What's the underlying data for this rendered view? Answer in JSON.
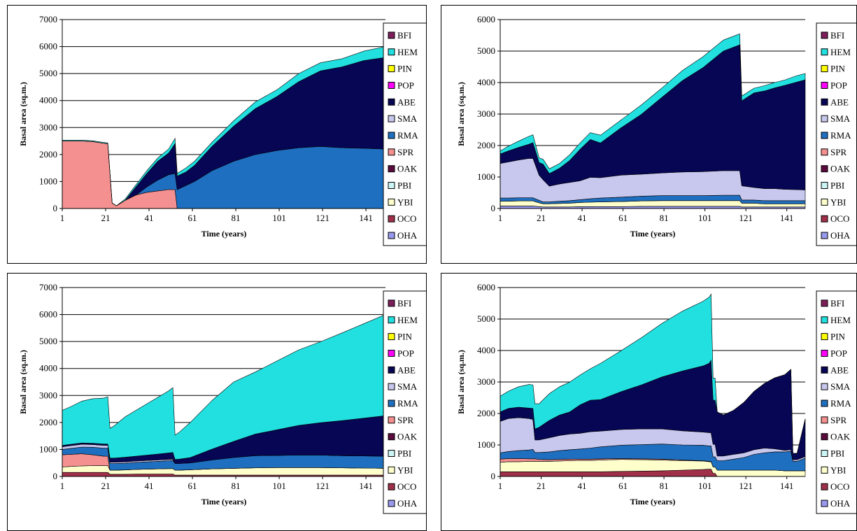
{
  "legend_species": [
    "BFI",
    "HEM",
    "PIN",
    "POP",
    "ABE",
    "SMA",
    "RMA",
    "SPR",
    "OAK",
    "PBI",
    "YBI",
    "OCO",
    "OHA"
  ],
  "colors": {
    "BFI": "#7b1e5a",
    "HEM": "#22e0e0",
    "PIN": "#ffff00",
    "POP": "#ff00ff",
    "ABE": "#060655",
    "SMA": "#c8c8ee",
    "RMA": "#1f6fc0",
    "SPR": "#f59090",
    "OAK": "#5a0a3c",
    "PBI": "#ccf5f5",
    "YBI": "#ffffcc",
    "OCO": "#a0304a",
    "OHA": "#9999ee"
  },
  "chart_data": [
    {
      "type": "area",
      "stacked": true,
      "xlabel": "Time (years)",
      "ylabel": "Basal area (sq.m.)",
      "xticks": [
        1,
        21,
        41,
        61,
        81,
        101,
        121,
        141
      ],
      "xlim": [
        1,
        150
      ],
      "yticks": [
        0,
        1000,
        2000,
        3000,
        4000,
        5000,
        6000,
        7000
      ],
      "ylim": [
        0,
        7000
      ],
      "legend": "right",
      "x": [
        1,
        5,
        10,
        15,
        20,
        22,
        24,
        26,
        30,
        35,
        40,
        45,
        50,
        53,
        54,
        58,
        62,
        70,
        80,
        90,
        100,
        110,
        120,
        130,
        140,
        150
      ],
      "series": [
        {
          "name": "SPR",
          "values": [
            2500,
            2500,
            2500,
            2480,
            2420,
            2400,
            200,
            100,
            300,
            500,
            600,
            650,
            700,
            700,
            0,
            0,
            0,
            0,
            0,
            0,
            0,
            0,
            0,
            0,
            0,
            0
          ]
        },
        {
          "name": "RMA",
          "values": [
            0,
            0,
            0,
            0,
            0,
            0,
            0,
            0,
            0,
            0,
            200,
            400,
            550,
            600,
            700,
            850,
            1000,
            1400,
            1750,
            2000,
            2150,
            2250,
            2300,
            2250,
            2230,
            2200
          ]
        },
        {
          "name": "ABE",
          "values": [
            0,
            0,
            0,
            0,
            0,
            0,
            0,
            0,
            0,
            300,
            500,
            700,
            800,
            1100,
            500,
            500,
            600,
            900,
            1300,
            1700,
            2000,
            2450,
            2800,
            3000,
            3250,
            3400
          ]
        },
        {
          "name": "HEM",
          "values": [
            30,
            30,
            30,
            30,
            30,
            30,
            0,
            0,
            50,
            80,
            100,
            120,
            150,
            200,
            100,
            150,
            150,
            150,
            200,
            250,
            250,
            300,
            300,
            300,
            350,
            400
          ]
        }
      ]
    },
    {
      "type": "area",
      "stacked": true,
      "xlabel": "Time (years)",
      "ylabel": "Basal area (sq.m.)",
      "xticks": [
        1,
        21,
        41,
        61,
        81,
        101,
        121,
        141
      ],
      "xlim": [
        1,
        150
      ],
      "yticks": [
        0,
        1000,
        2000,
        3000,
        4000,
        5000,
        6000
      ],
      "ylim": [
        0,
        6000
      ],
      "legend": "right",
      "x": [
        1,
        5,
        10,
        15,
        17,
        20,
        22,
        25,
        30,
        35,
        40,
        45,
        50,
        60,
        70,
        80,
        90,
        100,
        110,
        118,
        119,
        125,
        130,
        135,
        140,
        145,
        150
      ],
      "series": [
        {
          "name": "OHA",
          "values": [
            80,
            80,
            80,
            80,
            80,
            60,
            50,
            50,
            50,
            50,
            60,
            60,
            60,
            60,
            70,
            70,
            70,
            70,
            70,
            70,
            50,
            50,
            50,
            50,
            50,
            50,
            50
          ]
        },
        {
          "name": "YBI",
          "values": [
            150,
            150,
            160,
            160,
            160,
            120,
            100,
            100,
            110,
            120,
            130,
            140,
            150,
            160,
            170,
            180,
            180,
            180,
            180,
            180,
            120,
            120,
            100,
            100,
            100,
            100,
            100
          ]
        },
        {
          "name": "RMA",
          "values": [
            100,
            100,
            100,
            100,
            100,
            80,
            60,
            60,
            70,
            80,
            90,
            110,
            120,
            140,
            150,
            160,
            160,
            160,
            170,
            170,
            100,
            100,
            100,
            100,
            100,
            100,
            100
          ]
        },
        {
          "name": "SMA",
          "values": [
            1100,
            1150,
            1200,
            1250,
            1250,
            800,
            700,
            500,
            550,
            580,
            600,
            680,
            650,
            700,
            700,
            720,
            750,
            760,
            780,
            780,
            450,
            400,
            380,
            380,
            360,
            350,
            340
          ]
        },
        {
          "name": "ABE",
          "values": [
            300,
            350,
            400,
            450,
            500,
            400,
            500,
            400,
            500,
            700,
            1000,
            1200,
            1100,
            1500,
            1900,
            2400,
            2900,
            3300,
            3800,
            4000,
            2700,
            3000,
            3100,
            3200,
            3300,
            3400,
            3500
          ]
        },
        {
          "name": "HEM",
          "values": [
            100,
            150,
            200,
            250,
            250,
            150,
            150,
            150,
            150,
            180,
            200,
            220,
            250,
            250,
            300,
            300,
            320,
            350,
            350,
            350,
            150,
            150,
            170,
            170,
            170,
            200,
            200
          ]
        }
      ]
    },
    {
      "type": "area",
      "stacked": true,
      "xlabel": "Time (years)",
      "ylabel": "Basal area (sq.m.)",
      "xticks": [
        1,
        21,
        41,
        61,
        81,
        101,
        121,
        141
      ],
      "xlim": [
        1,
        150
      ],
      "yticks": [
        0,
        1000,
        2000,
        3000,
        4000,
        5000,
        6000,
        7000
      ],
      "ylim": [
        0,
        7000
      ],
      "legend": "right",
      "x": [
        1,
        5,
        10,
        15,
        20,
        22,
        23,
        25,
        30,
        35,
        40,
        45,
        50,
        52,
        53,
        55,
        60,
        70,
        80,
        90,
        100,
        110,
        120,
        130,
        140,
        150
      ],
      "series": [
        {
          "name": "OCO",
          "values": [
            150,
            150,
            150,
            150,
            150,
            150,
            80,
            80,
            80,
            90,
            90,
            90,
            90,
            90,
            50,
            50,
            50,
            50,
            50,
            50,
            50,
            50,
            50,
            50,
            50,
            50
          ]
        },
        {
          "name": "YBI",
          "values": [
            200,
            220,
            240,
            250,
            250,
            250,
            150,
            150,
            160,
            170,
            180,
            190,
            200,
            200,
            180,
            180,
            200,
            230,
            250,
            270,
            280,
            280,
            280,
            270,
            260,
            250
          ]
        },
        {
          "name": "SPR",
          "values": [
            450,
            450,
            450,
            400,
            350,
            350,
            0,
            0,
            0,
            0,
            0,
            0,
            0,
            0,
            0,
            0,
            0,
            0,
            0,
            0,
            0,
            0,
            0,
            0,
            0,
            0
          ]
        },
        {
          "name": "RMA",
          "values": [
            200,
            220,
            250,
            280,
            300,
            300,
            250,
            250,
            250,
            260,
            270,
            280,
            290,
            300,
            250,
            250,
            250,
            330,
            400,
            450,
            450,
            460,
            460,
            450,
            450,
            450
          ]
        },
        {
          "name": "SMA",
          "values": [
            100,
            100,
            100,
            100,
            100,
            100,
            50,
            50,
            50,
            50,
            50,
            50,
            50,
            50,
            0,
            0,
            0,
            0,
            0,
            0,
            0,
            0,
            0,
            0,
            0,
            0
          ]
        },
        {
          "name": "ABE",
          "values": [
            50,
            50,
            50,
            50,
            50,
            50,
            150,
            150,
            170,
            180,
            200,
            220,
            240,
            250,
            150,
            160,
            200,
            400,
            600,
            800,
            950,
            1100,
            1200,
            1300,
            1400,
            1500
          ]
        },
        {
          "name": "HEM",
          "values": [
            1300,
            1400,
            1550,
            1650,
            1700,
            1750,
            1100,
            1200,
            1500,
            1700,
            1900,
            2100,
            2300,
            2400,
            900,
            1000,
            1300,
            1800,
            2200,
            2300,
            2550,
            2800,
            3000,
            3250,
            3500,
            3750
          ]
        }
      ]
    },
    {
      "type": "area",
      "stacked": true,
      "xlabel": "Time (years)",
      "ylabel": "Basal area (sq.m.)",
      "xticks": [
        1,
        21,
        41,
        61,
        81,
        101,
        121,
        141
      ],
      "xlim": [
        1,
        150
      ],
      "yticks": [
        0,
        1000,
        2000,
        3000,
        4000,
        5000,
        6000
      ],
      "ylim": [
        0,
        6000
      ],
      "legend": "right",
      "x": [
        1,
        5,
        10,
        15,
        17,
        18,
        20,
        25,
        30,
        35,
        40,
        45,
        50,
        60,
        70,
        80,
        90,
        100,
        103,
        104,
        105,
        106,
        107,
        110,
        115,
        120,
        125,
        130,
        135,
        140,
        143,
        144,
        146,
        150
      ],
      "series": [
        {
          "name": "OCO",
          "values": [
            150,
            150,
            150,
            150,
            150,
            150,
            150,
            150,
            150,
            150,
            150,
            150,
            150,
            160,
            170,
            180,
            200,
            220,
            230,
            230,
            100,
            100,
            0,
            0,
            0,
            0,
            0,
            0,
            0,
            0,
            0,
            0,
            0,
            0
          ]
        },
        {
          "name": "YBI",
          "values": [
            300,
            320,
            320,
            330,
            330,
            330,
            330,
            330,
            340,
            350,
            360,
            360,
            370,
            380,
            360,
            340,
            300,
            270,
            240,
            240,
            200,
            200,
            200,
            200,
            200,
            200,
            200,
            200,
            200,
            180,
            180,
            180,
            180,
            180
          ]
        },
        {
          "name": "SPR",
          "values": [
            100,
            100,
            100,
            80,
            80,
            80,
            60,
            50,
            50,
            50,
            40,
            40,
            40,
            30,
            30,
            30,
            20,
            10,
            10,
            10,
            0,
            0,
            0,
            0,
            0,
            0,
            0,
            0,
            0,
            0,
            0,
            0,
            0,
            0
          ]
        },
        {
          "name": "RMA",
          "values": [
            200,
            220,
            250,
            280,
            300,
            200,
            220,
            250,
            280,
            300,
            320,
            350,
            380,
            420,
            450,
            480,
            480,
            490,
            490,
            490,
            320,
            320,
            300,
            300,
            350,
            400,
            500,
            550,
            580,
            600,
            620,
            300,
            300,
            400
          ]
        },
        {
          "name": "SMA",
          "values": [
            1000,
            1050,
            1050,
            1000,
            950,
            400,
            400,
            450,
            480,
            500,
            500,
            520,
            500,
            500,
            500,
            480,
            450,
            420,
            420,
            420,
            400,
            400,
            150,
            150,
            150,
            150,
            150,
            150,
            100,
            50,
            50,
            50,
            50,
            50
          ]
        },
        {
          "name": "ABE",
          "values": [
            300,
            320,
            330,
            330,
            350,
            350,
            400,
            550,
            650,
            700,
            900,
            1000,
            1000,
            1200,
            1400,
            1650,
            1900,
            2100,
            2200,
            2300,
            1400,
            1400,
            1400,
            1300,
            1400,
            1600,
            1850,
            2050,
            2250,
            2400,
            2550,
            200,
            200,
            1200
          ]
        },
        {
          "name": "HEM",
          "values": [
            500,
            550,
            650,
            750,
            750,
            800,
            750,
            850,
            900,
            950,
            950,
            1000,
            1150,
            1300,
            1500,
            1700,
            1900,
            2050,
            2100,
            2100,
            700,
            700,
            0,
            0,
            0,
            0,
            0,
            0,
            0,
            0,
            0,
            0,
            0,
            0
          ]
        }
      ]
    }
  ]
}
